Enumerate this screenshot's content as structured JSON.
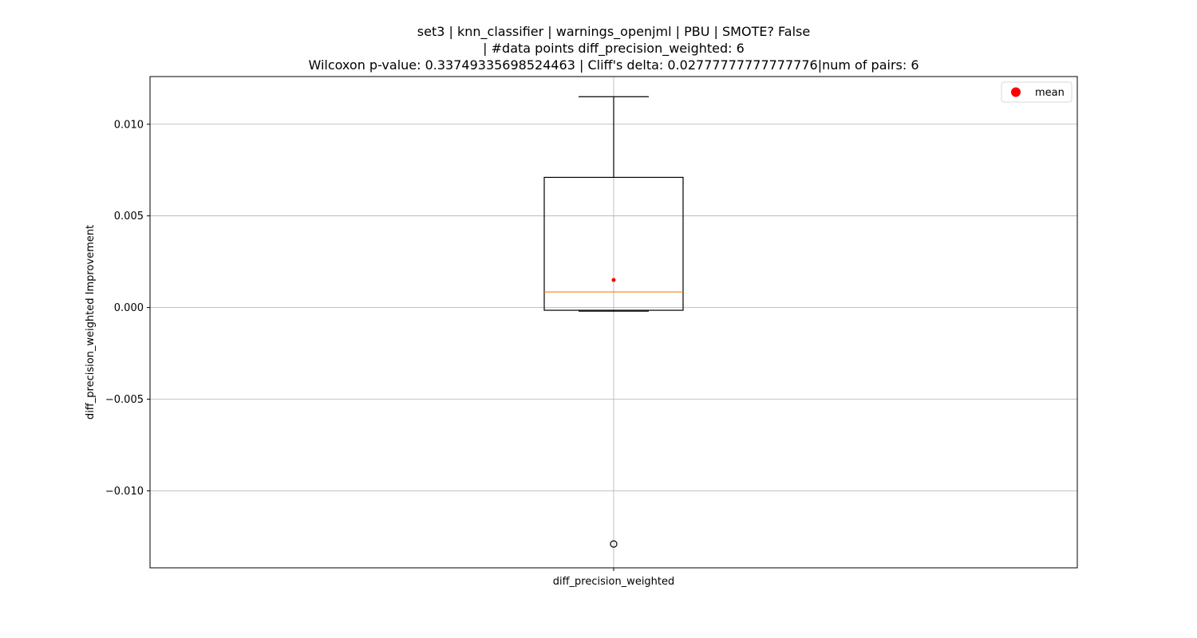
{
  "chart_data": {
    "type": "box",
    "title_lines": [
      "set3 | knn_classifier | warnings_openjml | PBU | SMOTE? False",
      "| #data points diff_precision_weighted: 6",
      "Wilcoxon p-value: 0.33749335698524463 | Cliff's delta: 0.02777777777777776|num of pairs: 6"
    ],
    "xlabel": "",
    "ylabel": "diff_precision_weighted Improvement",
    "categories": [
      "diff_precision_weighted"
    ],
    "ylim": [
      -0.0142,
      0.0126
    ],
    "yticks": [
      -0.01,
      -0.005,
      0.0,
      0.005,
      0.01
    ],
    "ytick_labels": [
      "−0.010",
      "−0.005",
      "0.000",
      "0.005",
      "0.010"
    ],
    "grid": true,
    "legend": {
      "position": "top-right",
      "entries": [
        {
          "label": "mean",
          "color": "#ff0000",
          "marker": "circle"
        }
      ]
    },
    "boxes": [
      {
        "name": "diff_precision_weighted",
        "whisker_low": -0.0002,
        "q1": -0.00015,
        "median": 0.00085,
        "q3": 0.0071,
        "whisker_high": 0.0115,
        "mean": 0.0015,
        "outliers": [
          -0.0129
        ]
      }
    ],
    "colors": {
      "box": "#000000",
      "median": "#ff7f0e",
      "mean": "#ff0000",
      "grid": "#b0b0b0"
    }
  }
}
